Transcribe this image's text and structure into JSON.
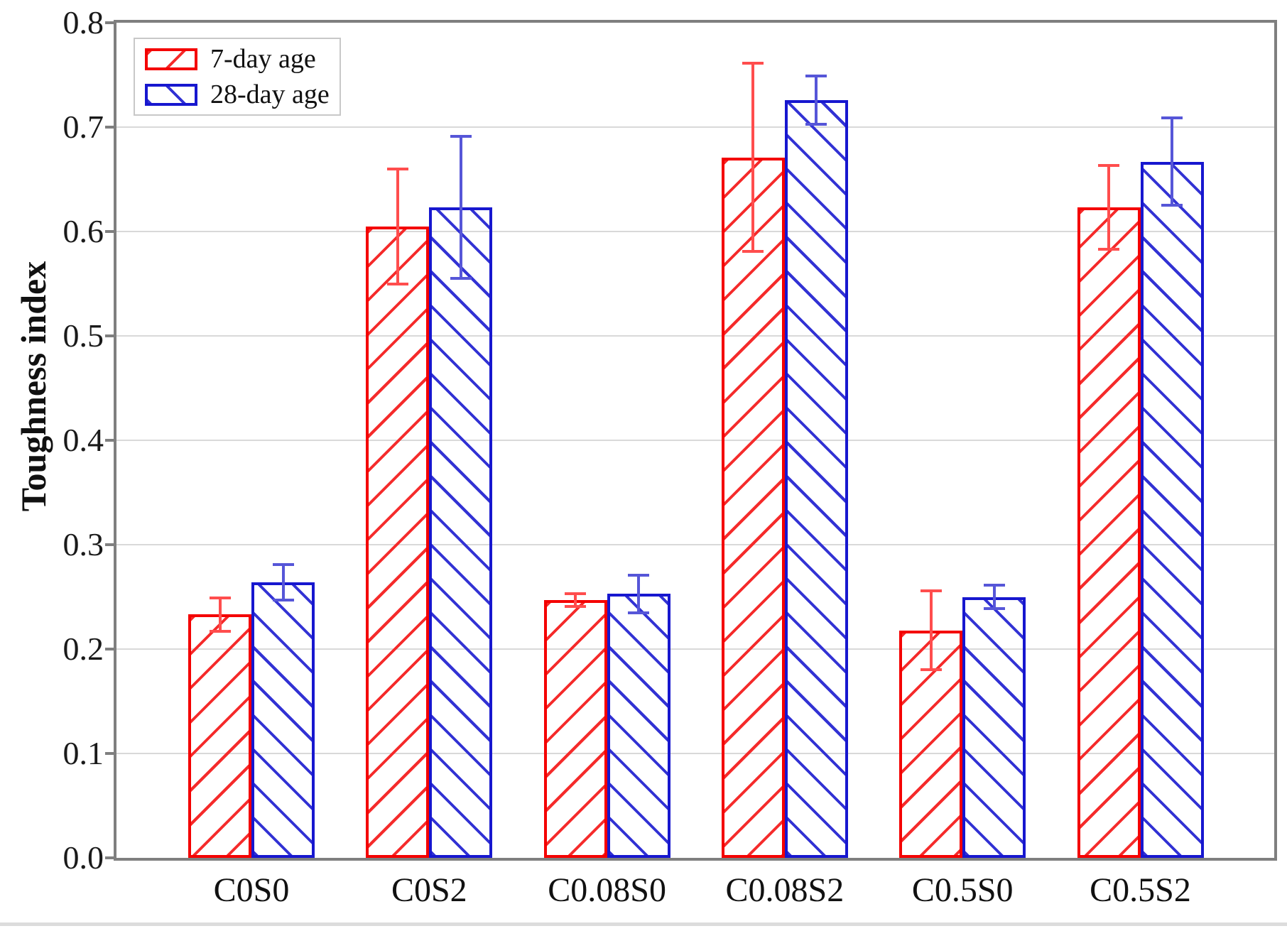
{
  "page": {
    "background": "#ffffff"
  },
  "chart_data": {
    "type": "bar",
    "title": "",
    "xlabel": "",
    "ylabel": "Toughness index",
    "categories": [
      "C0S0",
      "C0S2",
      "C0.08S0",
      "C0.08S2",
      "C0.5S0",
      "C0.5S2"
    ],
    "series": [
      {
        "name": "7-day age",
        "key": "7day",
        "color": "#f40000",
        "hatch_color": "#f52b2b",
        "error_color": "#ff4d4d",
        "hatch": "/",
        "values": [
          0.233,
          0.605,
          0.247,
          0.671,
          0.218,
          0.623
        ],
        "errors": [
          0.016,
          0.055,
          0.006,
          0.09,
          0.038,
          0.04
        ]
      },
      {
        "name": "28-day age",
        "key": "28day",
        "color": "#1717cf",
        "hatch_color": "#3232d4",
        "error_color": "#5656d8",
        "hatch": "\\",
        "values": [
          0.264,
          0.623,
          0.253,
          0.726,
          0.25,
          0.667
        ],
        "errors": [
          0.017,
          0.068,
          0.018,
          0.023,
          0.011,
          0.042
        ]
      }
    ],
    "ylim": [
      0.0,
      0.8
    ],
    "y_ticks": [
      "0.0",
      "0.1",
      "0.2",
      "0.3",
      "0.4",
      "0.5",
      "0.6",
      "0.7",
      "0.8"
    ],
    "grid": true,
    "legend_position": "top-left",
    "axis_colors": {
      "spine": "#7f7f7f",
      "gridline": "#d9d9d9"
    }
  }
}
